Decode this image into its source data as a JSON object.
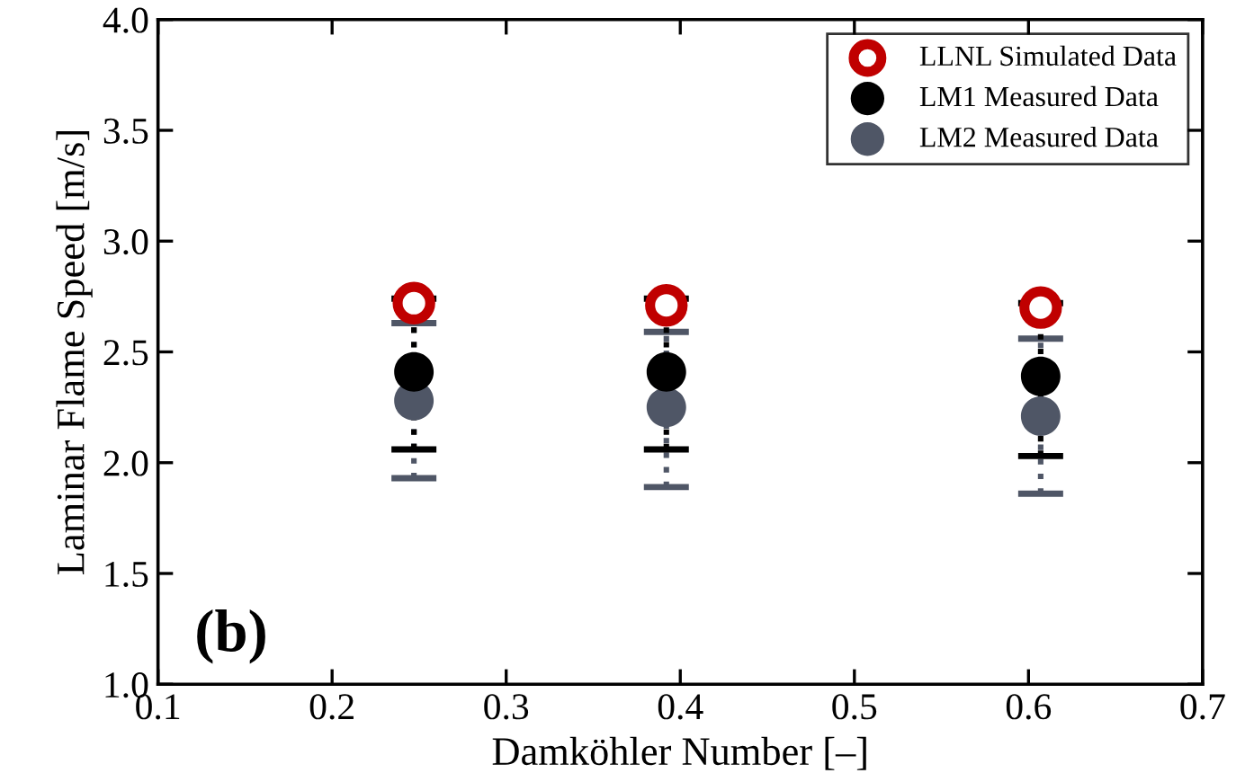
{
  "chart_data": {
    "type": "scatter",
    "xlabel": "Damköhler Number [–]",
    "ylabel": "Laminar Flame Speed [m/s]",
    "xlim": [
      0.1,
      0.7
    ],
    "xticks": [
      {
        "value": 0.1,
        "label": "0.1"
      },
      {
        "value": 0.2,
        "label": "0.2"
      },
      {
        "value": 0.3,
        "label": "0.3"
      },
      {
        "value": 0.4,
        "label": "0.4"
      },
      {
        "value": 0.5,
        "label": "0.5"
      },
      {
        "value": 0.6,
        "label": "0.6"
      },
      {
        "value": 0.7,
        "label": "0.7"
      }
    ],
    "ylim": [
      1.0,
      4.0
    ],
    "yticks": [
      {
        "value": 1.0,
        "label": "1.0"
      },
      {
        "value": 1.5,
        "label": "1.5"
      },
      {
        "value": 2.0,
        "label": "2.0"
      },
      {
        "value": 2.5,
        "label": "2.5"
      },
      {
        "value": 3.0,
        "label": "3.0"
      },
      {
        "value": 3.5,
        "label": "3.5"
      },
      {
        "value": 4.0,
        "label": "4.0"
      }
    ],
    "x": [
      0.247,
      0.392,
      0.607
    ],
    "series": [
      {
        "name": "LM2 Measured Data",
        "color": "#4f5666",
        "values": [
          2.28,
          2.25,
          2.21
        ],
        "errors": [
          [
            1.93,
            2.63
          ],
          [
            1.89,
            2.59
          ],
          [
            1.86,
            2.56
          ]
        ]
      },
      {
        "name": "LM1 Measured Data",
        "color": "#000000",
        "values": [
          2.41,
          2.41,
          2.39
        ],
        "errors": [
          [
            2.06,
            2.74
          ],
          [
            2.06,
            2.74
          ],
          [
            2.03,
            2.72
          ]
        ]
      },
      {
        "name": "LLNL Simulated Data",
        "color": "#c00000",
        "values": [
          2.72,
          2.71,
          2.7
        ]
      }
    ],
    "annotations": [
      "(b)"
    ],
    "legend": "top right",
    "grid": false,
    "marker": "circle",
    "line_style": "dotted"
  }
}
